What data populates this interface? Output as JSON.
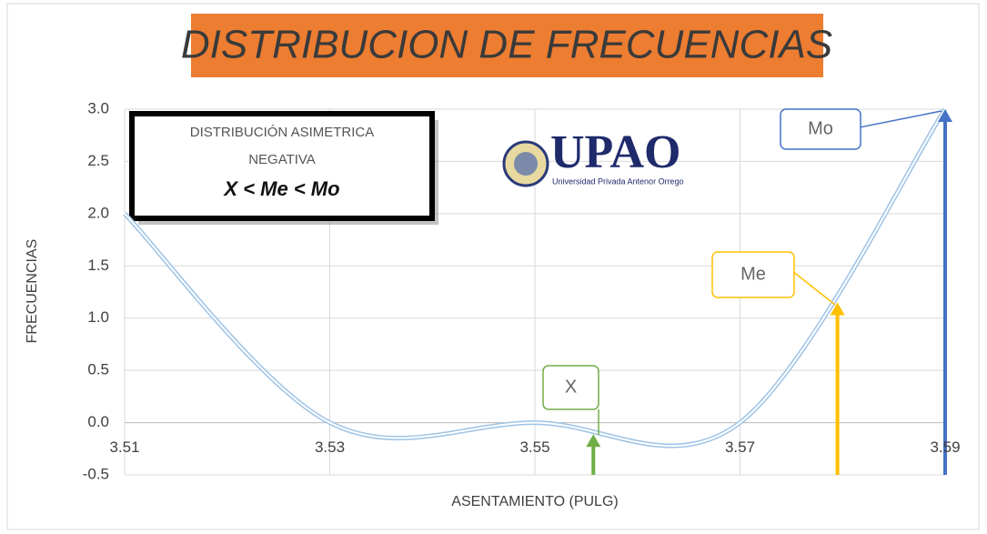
{
  "chart_data": {
    "type": "line",
    "title": "DISTRIBUCION DE FRECUENCIAS",
    "x_label": "ASENTAMIENTO (PULG)",
    "y_label": "FRECUENCIAS",
    "x": [
      3.51,
      3.53,
      3.55,
      3.57,
      3.59
    ],
    "series": [
      {
        "color": "#9dc3e6",
        "values": [
          2,
          0,
          0,
          0,
          3
        ]
      }
    ],
    "xlim": [
      3.51,
      3.59
    ],
    "ylim": [
      -0.5,
      3.0
    ],
    "xticks": [
      3.51,
      3.53,
      3.55,
      3.57,
      3.59
    ],
    "yticks": [
      -0.5,
      {
        "value": 0,
        "label": "0.0"
      },
      0.5,
      {
        "value": 1,
        "label": "1.0"
      },
      1.5,
      {
        "value": 2,
        "label": "2.0"
      },
      2.5,
      {
        "value": 3,
        "label": "3.0"
      }
    ],
    "grid": true,
    "smooth": true,
    "info_box": [
      "DISTRIBUCIÓN ASIMETRICA",
      "NEGATIVA",
      "X <  Me < Mo"
    ],
    "logo": {
      "name": "UPAO",
      "subtitle": "Universidad Privada Antenor Orrego"
    },
    "annotations": [
      {
        "label": "X",
        "x": 3.5557,
        "y": -0.11,
        "color": "#70ad47"
      },
      {
        "label": "Me",
        "x": 3.5795,
        "y": 1.15,
        "color": "#ffc000"
      },
      {
        "label": "Mo",
        "x": 3.59,
        "y": 3.0,
        "color": "#4472c4"
      }
    ]
  }
}
